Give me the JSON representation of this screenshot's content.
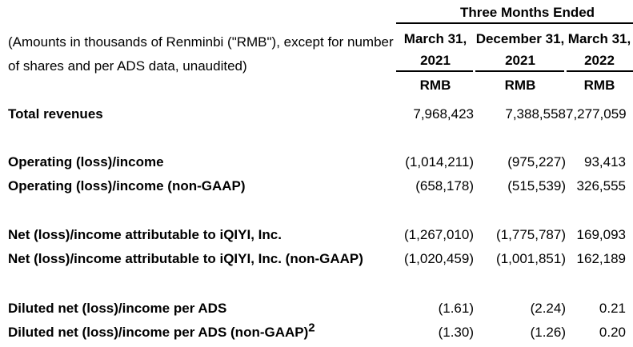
{
  "note": {
    "line1": "(Amounts in thousands of Renminbi (\"RMB\"), except for number",
    "line2": "of shares and per ADS data, unaudited)"
  },
  "header": {
    "period_title": "Three Months Ended",
    "columns": [
      {
        "date": "March 31,",
        "year": "2021",
        "currency": "RMB"
      },
      {
        "date": "December 31,",
        "year": "2021",
        "currency": "RMB"
      },
      {
        "date": "March 31,",
        "year": "2022",
        "currency": "RMB"
      }
    ]
  },
  "rows": [
    {
      "label": "Total revenues",
      "sup": "",
      "values": [
        "7,968,423",
        "7,388,558",
        "7,277,059"
      ]
    },
    {
      "label": "Operating (loss)/income",
      "sup": "",
      "values": [
        "(1,014,211)",
        "(975,227)",
        "93,413"
      ]
    },
    {
      "label": "Operating (loss)/income (non-GAAP)",
      "sup": "",
      "values": [
        "(658,178)",
        "(515,539)",
        "326,555"
      ]
    },
    {
      "label": "Net (loss)/income attributable to iQIYI, Inc.",
      "sup": "",
      "values": [
        "(1,267,010)",
        "(1,775,787)",
        "169,093"
      ]
    },
    {
      "label": "Net (loss)/income attributable to iQIYI, Inc. (non-GAAP)",
      "sup": "",
      "values": [
        "(1,020,459)",
        "(1,001,851)",
        "162,189"
      ]
    },
    {
      "label": "Diluted net (loss)/income per ADS",
      "sup": "",
      "values": [
        "(1.61)",
        "(2.24)",
        "0.21"
      ]
    },
    {
      "label": "Diluted net (loss)/income per ADS (non-GAAP)",
      "sup": "2",
      "values": [
        "(1.30)",
        "(1.26)",
        "0.20"
      ]
    }
  ],
  "colors": {
    "text": "#000000",
    "rule": "#000000",
    "background": "#ffffff"
  }
}
